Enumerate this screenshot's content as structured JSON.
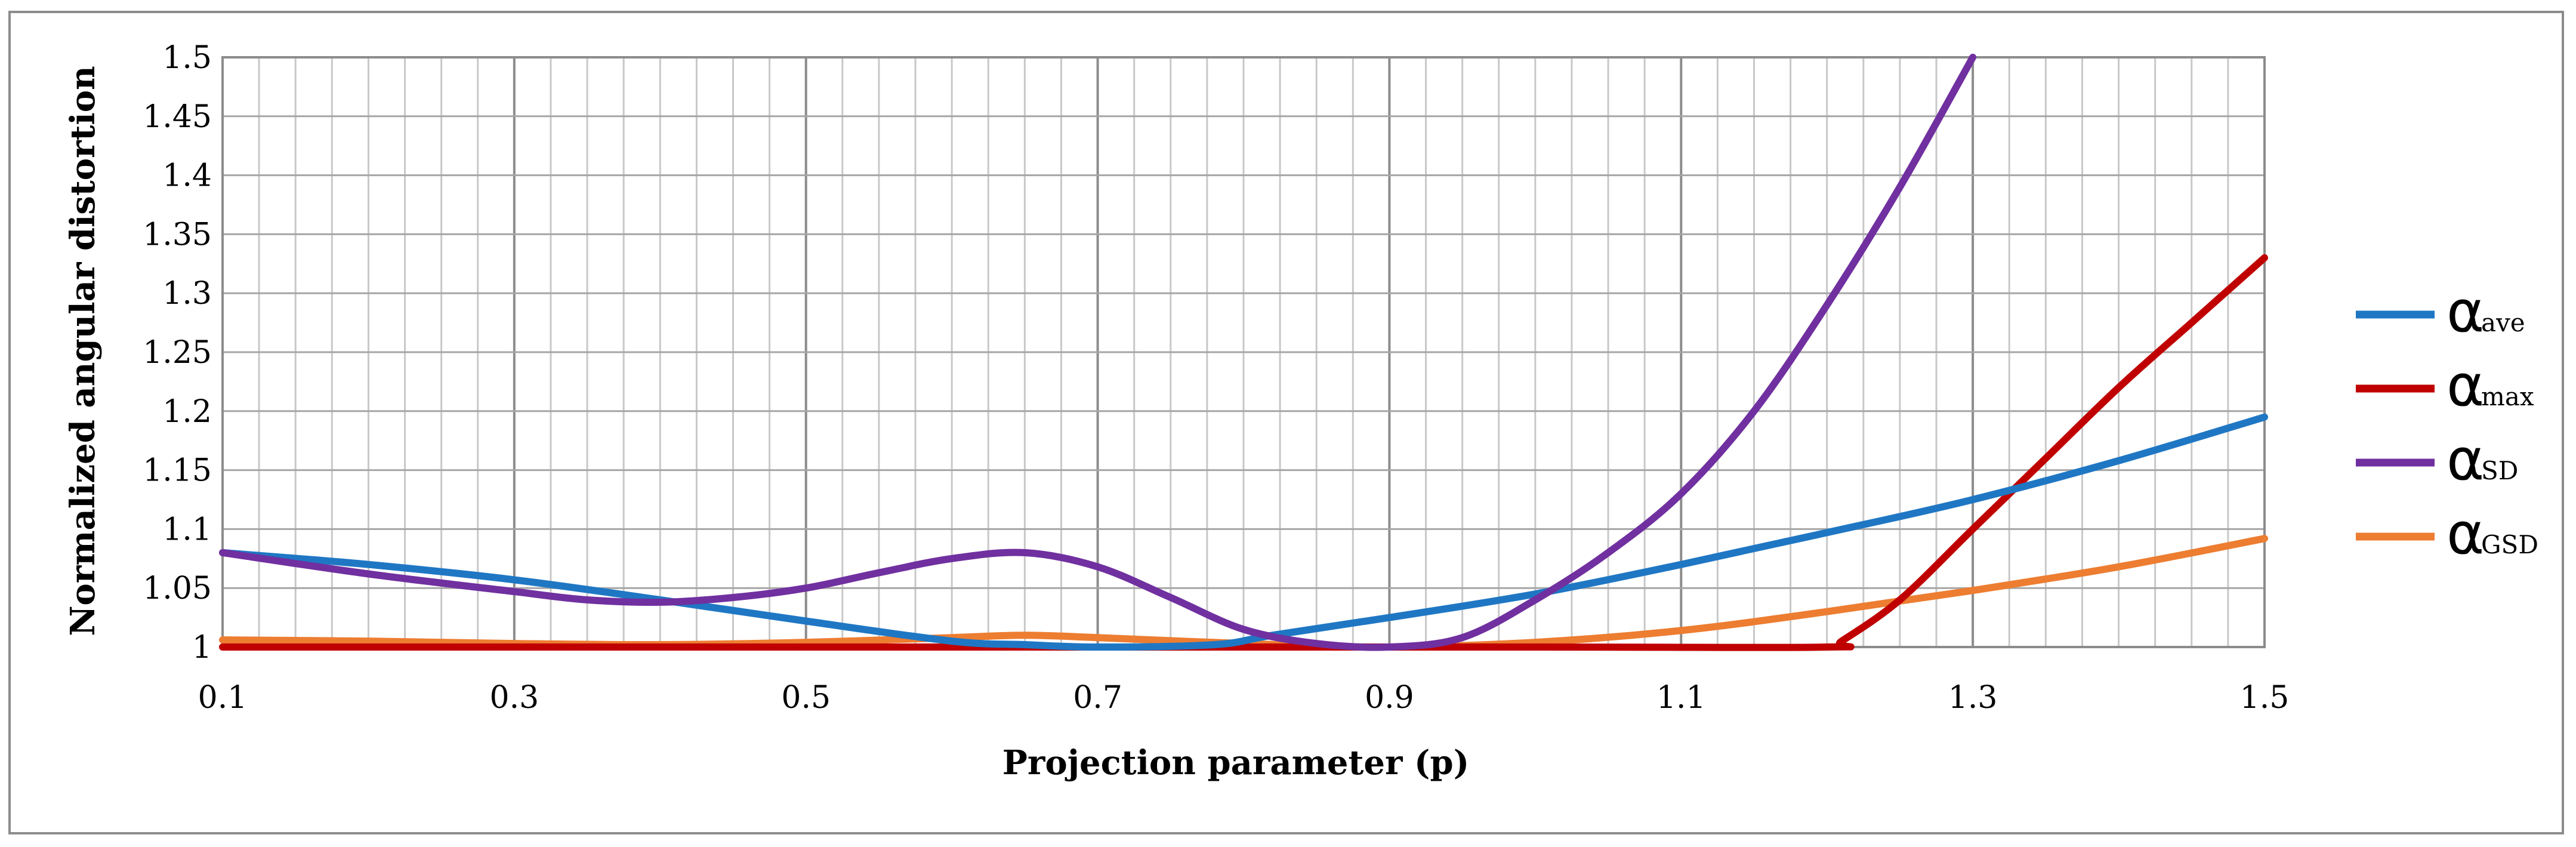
{
  "chart_data": {
    "type": "line",
    "title": "",
    "xlabel": "Projection parameter (p)",
    "ylabel": "Normalized angular distortion",
    "xlim": [
      0.1,
      1.5
    ],
    "ylim": [
      1,
      1.5
    ],
    "x_ticks": [
      "0.1",
      "0.3",
      "0.5",
      "0.7",
      "0.9",
      "1.1",
      "1.3",
      "1.5"
    ],
    "y_ticks": [
      "1",
      "1.05",
      "1.1",
      "1.15",
      "1.2",
      "1.25",
      "1.3",
      "1.35",
      "1.4",
      "1.45",
      "1.5"
    ],
    "grid": true,
    "legend_position": "right",
    "series": [
      {
        "name": "α",
        "sub": "ave",
        "color": "#1f77c4",
        "points": [
          [
            0.1,
            1.08
          ],
          [
            0.2,
            1.07
          ],
          [
            0.3,
            1.057
          ],
          [
            0.4,
            1.04
          ],
          [
            0.5,
            1.022
          ],
          [
            0.6,
            1.005
          ],
          [
            0.65,
            1.002
          ],
          [
            0.7,
            1.0
          ],
          [
            0.78,
            1.002
          ],
          [
            0.82,
            1.01
          ],
          [
            0.9,
            1.025
          ],
          [
            1.0,
            1.045
          ],
          [
            1.1,
            1.07
          ],
          [
            1.2,
            1.097
          ],
          [
            1.3,
            1.125
          ],
          [
            1.4,
            1.158
          ],
          [
            1.5,
            1.195
          ]
        ]
      },
      {
        "name": "α",
        "sub": "max",
        "color": "#c00000",
        "points": [
          [
            0.1,
            1.0
          ],
          [
            0.5,
            1.0
          ],
          [
            1.0,
            1.0
          ],
          [
            1.2,
            1.0
          ],
          [
            1.21,
            1.005
          ],
          [
            1.25,
            1.04
          ],
          [
            1.3,
            1.1
          ],
          [
            1.35,
            1.16
          ],
          [
            1.4,
            1.22
          ],
          [
            1.45,
            1.275
          ],
          [
            1.5,
            1.33
          ]
        ]
      },
      {
        "name": "α",
        "sub": "SD",
        "color": "#7030a0",
        "points": [
          [
            0.1,
            1.08
          ],
          [
            0.2,
            1.062
          ],
          [
            0.3,
            1.047
          ],
          [
            0.35,
            1.04
          ],
          [
            0.4,
            1.038
          ],
          [
            0.45,
            1.042
          ],
          [
            0.5,
            1.05
          ],
          [
            0.55,
            1.063
          ],
          [
            0.6,
            1.075
          ],
          [
            0.65,
            1.08
          ],
          [
            0.7,
            1.068
          ],
          [
            0.75,
            1.042
          ],
          [
            0.8,
            1.015
          ],
          [
            0.85,
            1.003
          ],
          [
            0.9,
            1.0
          ],
          [
            0.95,
            1.008
          ],
          [
            1.0,
            1.04
          ],
          [
            1.05,
            1.08
          ],
          [
            1.1,
            1.13
          ],
          [
            1.15,
            1.2
          ],
          [
            1.2,
            1.29
          ],
          [
            1.25,
            1.39
          ],
          [
            1.3,
            1.5
          ]
        ]
      },
      {
        "name": "α",
        "sub": "GSD",
        "color": "#ed7d31",
        "points": [
          [
            0.1,
            1.006
          ],
          [
            0.2,
            1.005
          ],
          [
            0.3,
            1.003
          ],
          [
            0.4,
            1.002
          ],
          [
            0.5,
            1.004
          ],
          [
            0.6,
            1.008
          ],
          [
            0.65,
            1.01
          ],
          [
            0.7,
            1.008
          ],
          [
            0.8,
            1.003
          ],
          [
            0.9,
            1.0
          ],
          [
            1.0,
            1.004
          ],
          [
            1.1,
            1.014
          ],
          [
            1.2,
            1.03
          ],
          [
            1.3,
            1.048
          ],
          [
            1.4,
            1.068
          ],
          [
            1.5,
            1.092
          ]
        ]
      }
    ]
  }
}
